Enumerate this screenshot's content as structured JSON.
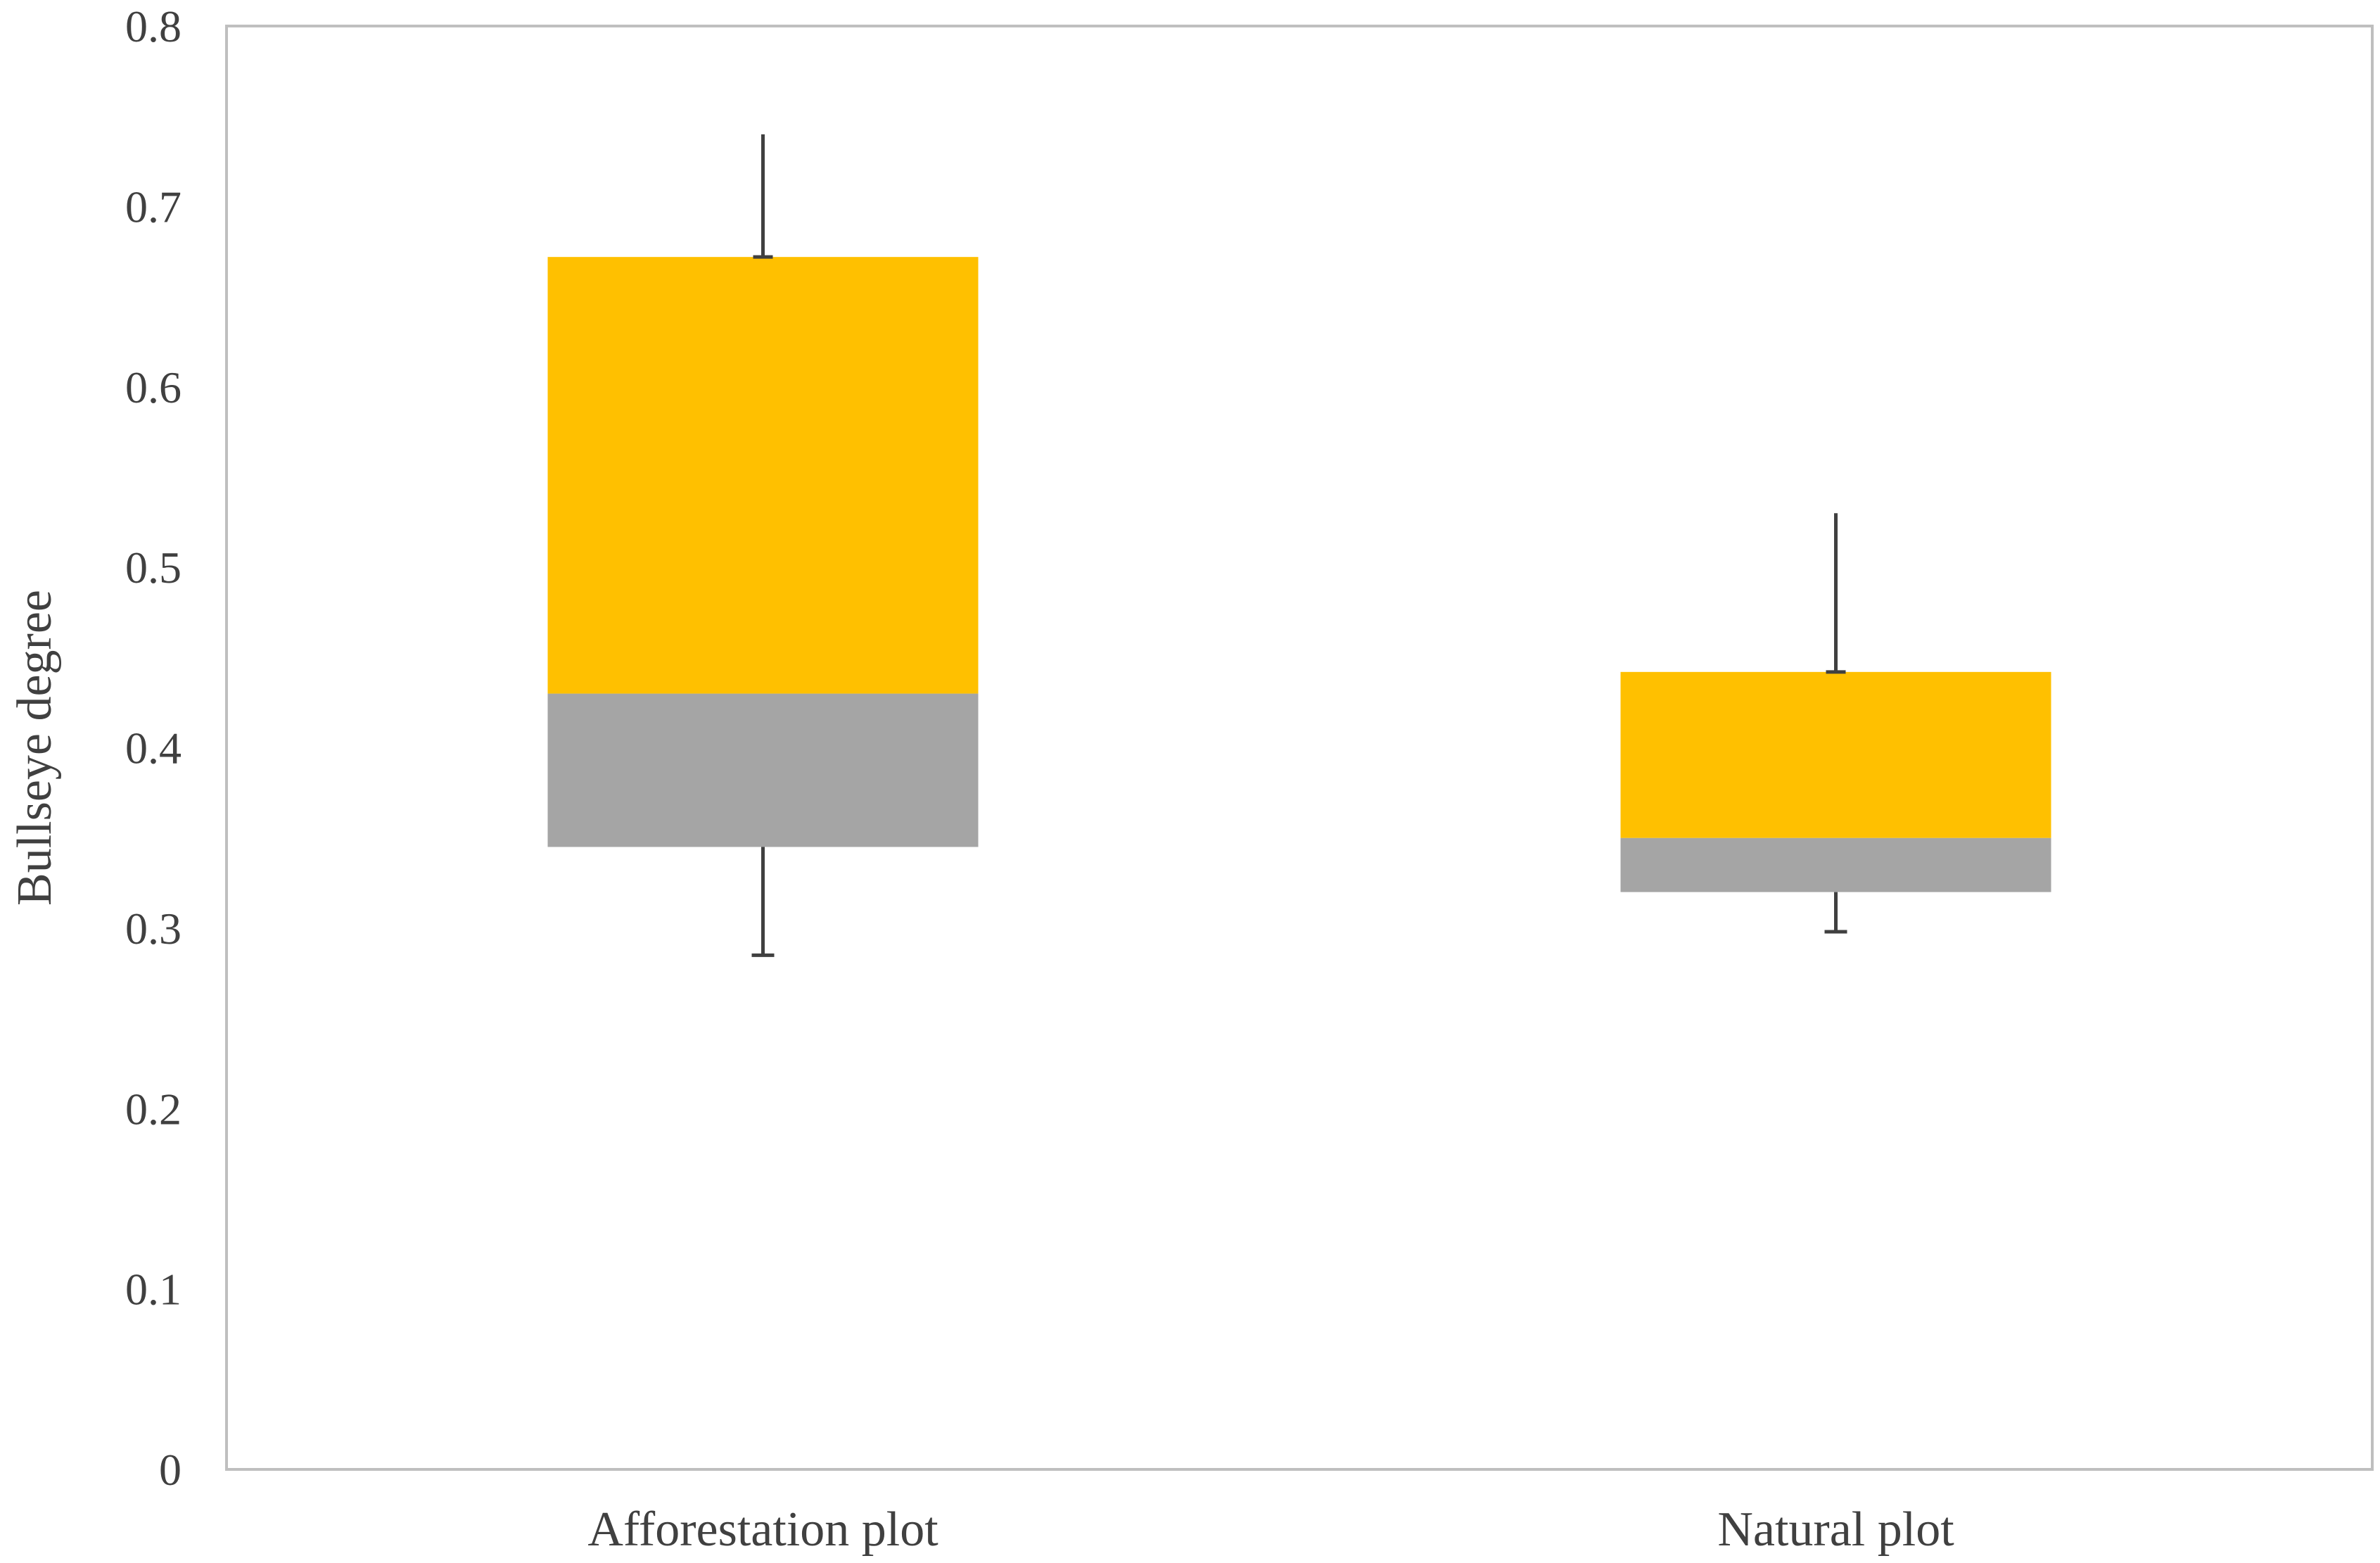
{
  "chart_data": {
    "type": "bar",
    "title": "",
    "xlabel": "",
    "ylabel": "Bullseye degree",
    "ylim": [
      0,
      0.8
    ],
    "yticks": [
      "0",
      "0.1",
      "0.2",
      "0.3",
      "0.4",
      "0.5",
      "0.6",
      "0.7",
      "0.8"
    ],
    "grid": false,
    "legend": "none",
    "categories": [
      "Afforestation plot",
      "Natural plot"
    ],
    "boxes": [
      {
        "category": "Afforestation plot",
        "whisker_low": 0.285,
        "q1": 0.345,
        "median": 0.43,
        "q3": 0.672,
        "whisker_high": 0.74
      },
      {
        "category": "Natural plot",
        "whisker_low": 0.298,
        "q1": 0.32,
        "median": 0.35,
        "q3": 0.442,
        "whisker_high": 0.53
      }
    ],
    "colors": {
      "lower_box": "#a5a5a5",
      "upper_box": "#ffc000",
      "whisker": "#404040",
      "frame": "#bfbfbf"
    }
  }
}
